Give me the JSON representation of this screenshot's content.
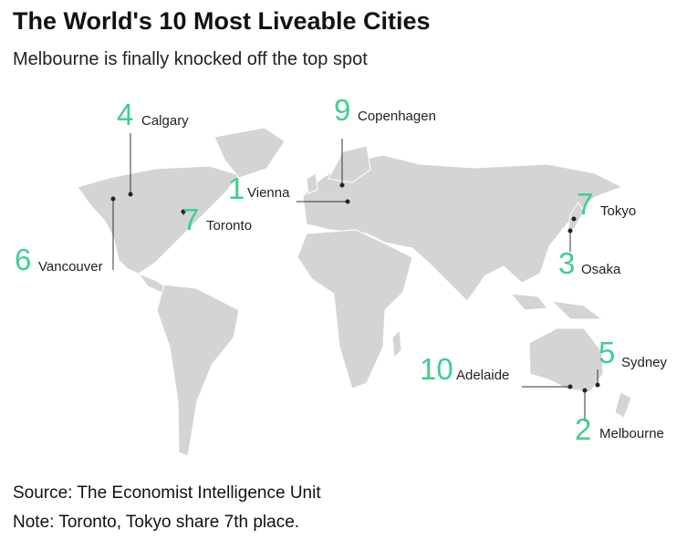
{
  "header": {
    "title": "The World's 10 Most Liveable Cities",
    "subtitle": "Melbourne is finally knocked off the top spot"
  },
  "cities": [
    {
      "rank": "1",
      "name": "Vienna"
    },
    {
      "rank": "2",
      "name": "Melbourne"
    },
    {
      "rank": "3",
      "name": "Osaka"
    },
    {
      "rank": "4",
      "name": "Calgary"
    },
    {
      "rank": "5",
      "name": "Sydney"
    },
    {
      "rank": "6",
      "name": "Vancouver"
    },
    {
      "rank": "7",
      "name": "Toronto"
    },
    {
      "rank": "7",
      "name": "Tokyo"
    },
    {
      "rank": "9",
      "name": "Copenhagen"
    },
    {
      "rank": "10",
      "name": "Adelaide"
    }
  ],
  "footer": {
    "source": "Source: The Economist Intelligence Unit",
    "note": "Note: Toronto, Tokyo share 7th place."
  }
}
